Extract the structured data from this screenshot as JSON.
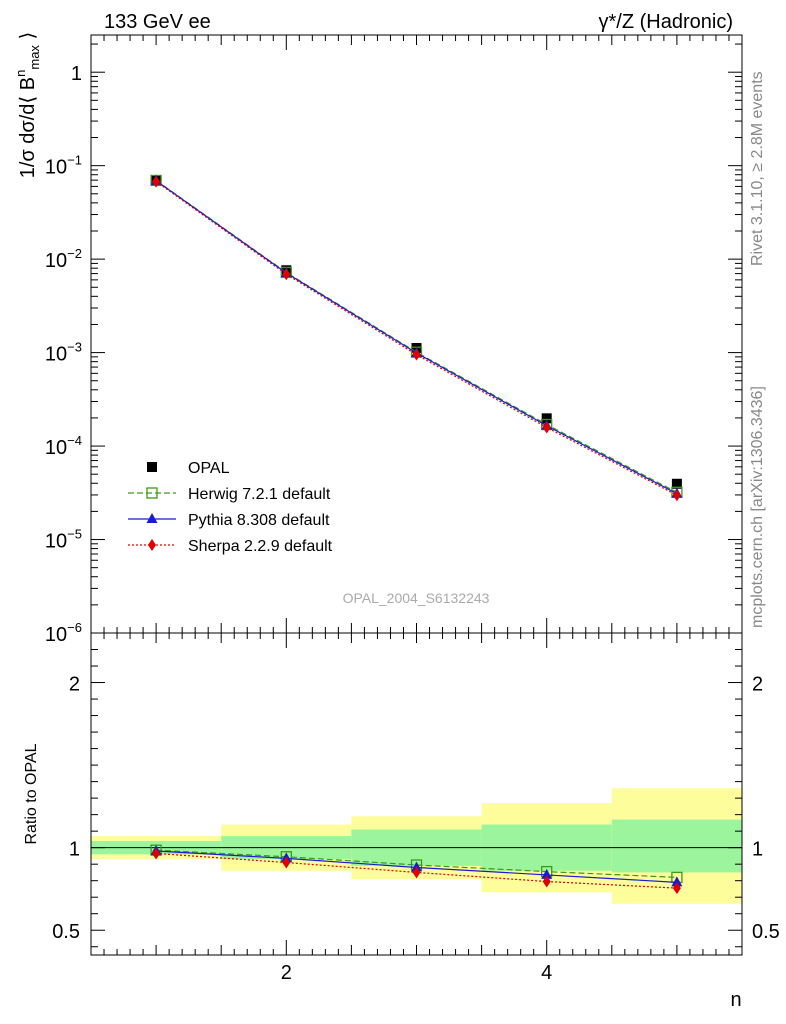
{
  "header": {
    "left": "133 GeV ee",
    "right": "γ*/Z (Hadronic)"
  },
  "side": {
    "rivet": "Rivet 3.1.10, ≥ 2.8M events",
    "mcplots": "mcplots.cern.ch [arXiv:1306.3436]"
  },
  "watermark": "OPAL_2004_S6132243",
  "chart_data": [
    {
      "type": "scatter",
      "panel": "main",
      "ylabel": "1/σ dσ/d⟨ B^n_max ⟩",
      "yscale": "log",
      "ylim": [
        1e-06,
        2.5
      ],
      "xlim": [
        0.5,
        5.5
      ],
      "x": [
        1,
        2,
        3,
        4,
        5
      ],
      "yticks": [
        {
          "value": 1,
          "base": "1",
          "exp": ""
        },
        {
          "value": 0.1,
          "base": "10",
          "exp": "−1"
        },
        {
          "value": 0.01,
          "base": "10",
          "exp": "−2"
        },
        {
          "value": 0.001,
          "base": "10",
          "exp": "−3"
        },
        {
          "value": 0.0001,
          "base": "10",
          "exp": "−4"
        },
        {
          "value": 1e-05,
          "base": "10",
          "exp": "−5"
        },
        {
          "value": 1e-06,
          "base": "10",
          "exp": "−6"
        }
      ],
      "legend_position": "bottom-left",
      "series": [
        {
          "name": "OPAL",
          "color": "#000000",
          "marker": "square-filled",
          "line": "none",
          "values": [
            0.07,
            0.0076,
            0.00112,
            0.000198,
            3.95e-05
          ]
        },
        {
          "name": "Herwig 7.2.1 default",
          "color": "#3a9a1a",
          "marker": "square-open",
          "line": "dashed",
          "values": [
            0.0695,
            0.0072,
            0.00101,
            0.00017,
            3.2e-05
          ]
        },
        {
          "name": "Pythia 8.308 default",
          "color": "#1a1ad0",
          "marker": "triangle",
          "line": "solid",
          "values": [
            0.069,
            0.0071,
            0.00099,
            0.000165,
            3.1e-05
          ]
        },
        {
          "name": "Sherpa 2.2.9 default",
          "color": "#e00000",
          "marker": "diamond",
          "line": "dotted",
          "values": [
            0.0675,
            0.0069,
            0.00095,
            0.000158,
            2.98e-05
          ]
        }
      ]
    },
    {
      "type": "scatter",
      "panel": "ratio",
      "ylabel": "Ratio to OPAL",
      "xlabel": "n",
      "xlim": [
        0.5,
        5.5
      ],
      "ylim": [
        0.35,
        2.3
      ],
      "xticks": [
        2,
        4
      ],
      "yticks": [
        0.5,
        1,
        2
      ],
      "reference": 1,
      "bands": {
        "edges": [
          0.5,
          1.5,
          2.5,
          3.5,
          4.5,
          5.5
        ],
        "inner": {
          "color": "#9cf59c",
          "low": [
            0.96,
            0.93,
            0.89,
            0.86,
            0.85
          ],
          "high": [
            1.04,
            1.07,
            1.11,
            1.14,
            1.17
          ]
        },
        "outer": {
          "color": "#fdfd9c",
          "low": [
            0.93,
            0.86,
            0.81,
            0.73,
            0.66
          ],
          "high": [
            1.07,
            1.14,
            1.19,
            1.27,
            1.36
          ]
        }
      },
      "x": [
        1,
        2,
        3,
        4,
        5
      ],
      "series": [
        {
          "name": "Herwig 7.2.1 default",
          "values": [
            0.985,
            0.945,
            0.895,
            0.855,
            0.82
          ]
        },
        {
          "name": "Pythia 8.308 default",
          "values": [
            0.98,
            0.935,
            0.88,
            0.835,
            0.79
          ]
        },
        {
          "name": "Sherpa 2.2.9 default",
          "values": [
            0.965,
            0.91,
            0.85,
            0.795,
            0.755
          ]
        }
      ]
    }
  ]
}
